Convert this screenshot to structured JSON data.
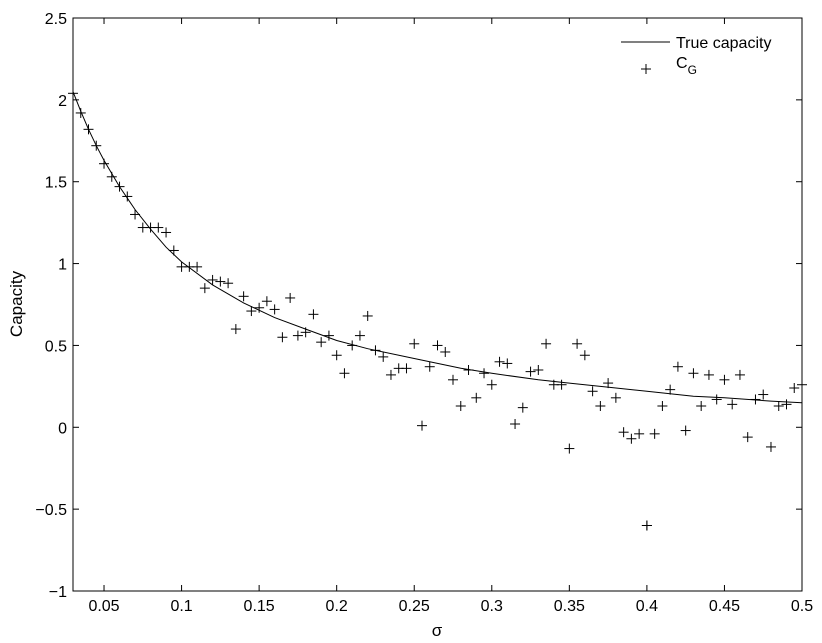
{
  "chart_data": {
    "type": "scatter",
    "title": "",
    "xlabel": "σ",
    "ylabel": "Capacity",
    "xlim": [
      0.03,
      0.5
    ],
    "ylim": [
      -1,
      2.5
    ],
    "x_ticks": [
      0.05,
      0.1,
      0.15,
      0.2,
      0.25,
      0.3,
      0.35,
      0.4,
      0.45,
      0.5
    ],
    "x_tick_labels": [
      "0.05",
      "0.1",
      "0.15",
      "0.2",
      "0.25",
      "0.3",
      "0.35",
      "0.4",
      "0.45",
      "0.5"
    ],
    "y_ticks": [
      -1,
      -0.5,
      0,
      0.5,
      1,
      1.5,
      2,
      2.5
    ],
    "y_tick_labels": [
      "−1",
      "−0.5",
      "0",
      "0.5",
      "1",
      "1.5",
      "2",
      "2.5"
    ],
    "grid": false,
    "legend_position": "top-right",
    "series": [
      {
        "name": "True capacity",
        "kind": "line",
        "color": "#000000",
        "x": [
          0.03,
          0.035,
          0.04,
          0.045,
          0.05,
          0.06,
          0.07,
          0.08,
          0.09,
          0.1,
          0.12,
          0.14,
          0.16,
          0.18,
          0.2,
          0.22,
          0.25,
          0.28,
          0.3,
          0.33,
          0.35,
          0.38,
          0.4,
          0.43,
          0.45,
          0.48,
          0.5
        ],
        "y": [
          2.05,
          1.93,
          1.82,
          1.72,
          1.63,
          1.47,
          1.33,
          1.21,
          1.1,
          1.01,
          0.87,
          0.76,
          0.67,
          0.6,
          0.53,
          0.48,
          0.42,
          0.36,
          0.33,
          0.29,
          0.27,
          0.24,
          0.22,
          0.19,
          0.18,
          0.16,
          0.15
        ]
      },
      {
        "name": "C",
        "name_subscript": "G",
        "kind": "markers",
        "marker": "+",
        "color": "#000000",
        "x": [
          0.03,
          0.035,
          0.04,
          0.045,
          0.05,
          0.055,
          0.06,
          0.065,
          0.07,
          0.075,
          0.08,
          0.085,
          0.09,
          0.095,
          0.1,
          0.105,
          0.11,
          0.115,
          0.12,
          0.125,
          0.13,
          0.135,
          0.14,
          0.145,
          0.15,
          0.155,
          0.16,
          0.165,
          0.17,
          0.175,
          0.18,
          0.185,
          0.19,
          0.195,
          0.2,
          0.205,
          0.21,
          0.215,
          0.22,
          0.225,
          0.23,
          0.235,
          0.24,
          0.245,
          0.25,
          0.255,
          0.26,
          0.265,
          0.27,
          0.275,
          0.28,
          0.285,
          0.29,
          0.295,
          0.3,
          0.305,
          0.31,
          0.315,
          0.32,
          0.325,
          0.33,
          0.335,
          0.34,
          0.345,
          0.35,
          0.355,
          0.36,
          0.365,
          0.37,
          0.375,
          0.38,
          0.385,
          0.39,
          0.395,
          0.4,
          0.405,
          0.41,
          0.415,
          0.42,
          0.425,
          0.43,
          0.435,
          0.44,
          0.445,
          0.45,
          0.455,
          0.46,
          0.465,
          0.47,
          0.475,
          0.48,
          0.485,
          0.49,
          0.495,
          0.5,
          0.4
        ],
        "y": [
          2.04,
          1.92,
          1.82,
          1.72,
          1.61,
          1.53,
          1.47,
          1.41,
          1.3,
          1.22,
          1.22,
          1.22,
          1.19,
          1.08,
          0.98,
          0.98,
          0.98,
          0.85,
          0.9,
          0.89,
          0.88,
          0.6,
          0.8,
          0.71,
          0.73,
          0.77,
          0.72,
          0.55,
          0.79,
          0.56,
          0.58,
          0.69,
          0.52,
          0.56,
          0.44,
          0.33,
          0.5,
          0.56,
          0.68,
          0.47,
          0.43,
          0.32,
          0.36,
          0.36,
          0.51,
          0.01,
          0.37,
          0.5,
          0.46,
          0.29,
          0.13,
          0.35,
          0.18,
          0.33,
          0.26,
          0.4,
          0.39,
          0.02,
          0.12,
          0.34,
          0.35,
          0.51,
          0.26,
          0.26,
          -0.13,
          0.51,
          0.44,
          0.22,
          0.13,
          0.27,
          0.18,
          -0.03,
          -0.07,
          -0.04,
          -0.6,
          -0.04,
          0.13,
          0.23,
          0.37,
          -0.02,
          0.33,
          0.13,
          0.32,
          0.17,
          0.29,
          0.14,
          0.32,
          -0.06,
          0.17,
          0.2,
          -0.12,
          0.13,
          0.14,
          0.24,
          0.26,
          -0.6
        ]
      }
    ]
  }
}
